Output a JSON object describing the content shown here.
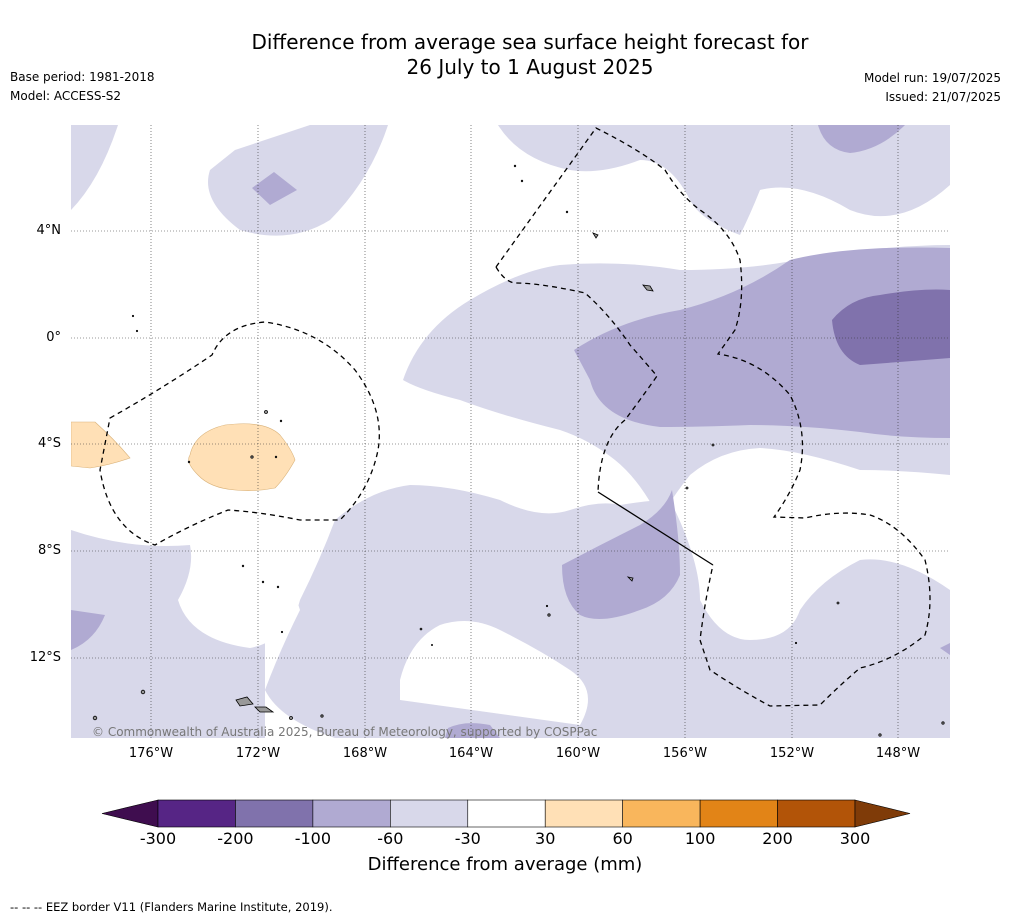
{
  "title_line1": "Difference from average sea surface height forecast for",
  "title_line2": "26 July to 1 August 2025",
  "base_period": "Base period: 1981-2018",
  "model": "Model: ACCESS-S2",
  "model_run": "Model run: 19/07/2025",
  "issued": "Issued: 21/07/2025",
  "copyright": "© Commonwealth of Australia 2025, Bureau of Meteorology, supported by COSPPac",
  "footnote": "--  --  -- EEZ border V11 (Flanders Marine Institute, 2019).",
  "lat_labels": [
    "4°N",
    "0°",
    "4°S",
    "8°S",
    "12°S"
  ],
  "lon_labels": [
    "176°W",
    "172°W",
    "168°W",
    "164°W",
    "160°W",
    "156°W",
    "152°W",
    "148°W"
  ],
  "colorbar": {
    "label": "Difference from average (mm)",
    "ticks": [
      "-300",
      "-200",
      "-100",
      "-60",
      "-30",
      "30",
      "60",
      "100",
      "200",
      "300"
    ],
    "colors": [
      "#3f0d4f",
      "#562585",
      "#8072ac",
      "#b0aad2",
      "#d8d8ea",
      "#ffffff",
      "#ffe0b6",
      "#f9b65c",
      "#e28417",
      "#b25408",
      "#7f3b08"
    ]
  },
  "map_colors": {
    "ocean_neutral": "#ffffff",
    "minus_30_60": "#d8d8ea",
    "minus_60_100": "#b0aad2",
    "minus_100_200": "#8072ac",
    "plus_30_60": "#ffe0b6",
    "land": "#999999"
  }
}
